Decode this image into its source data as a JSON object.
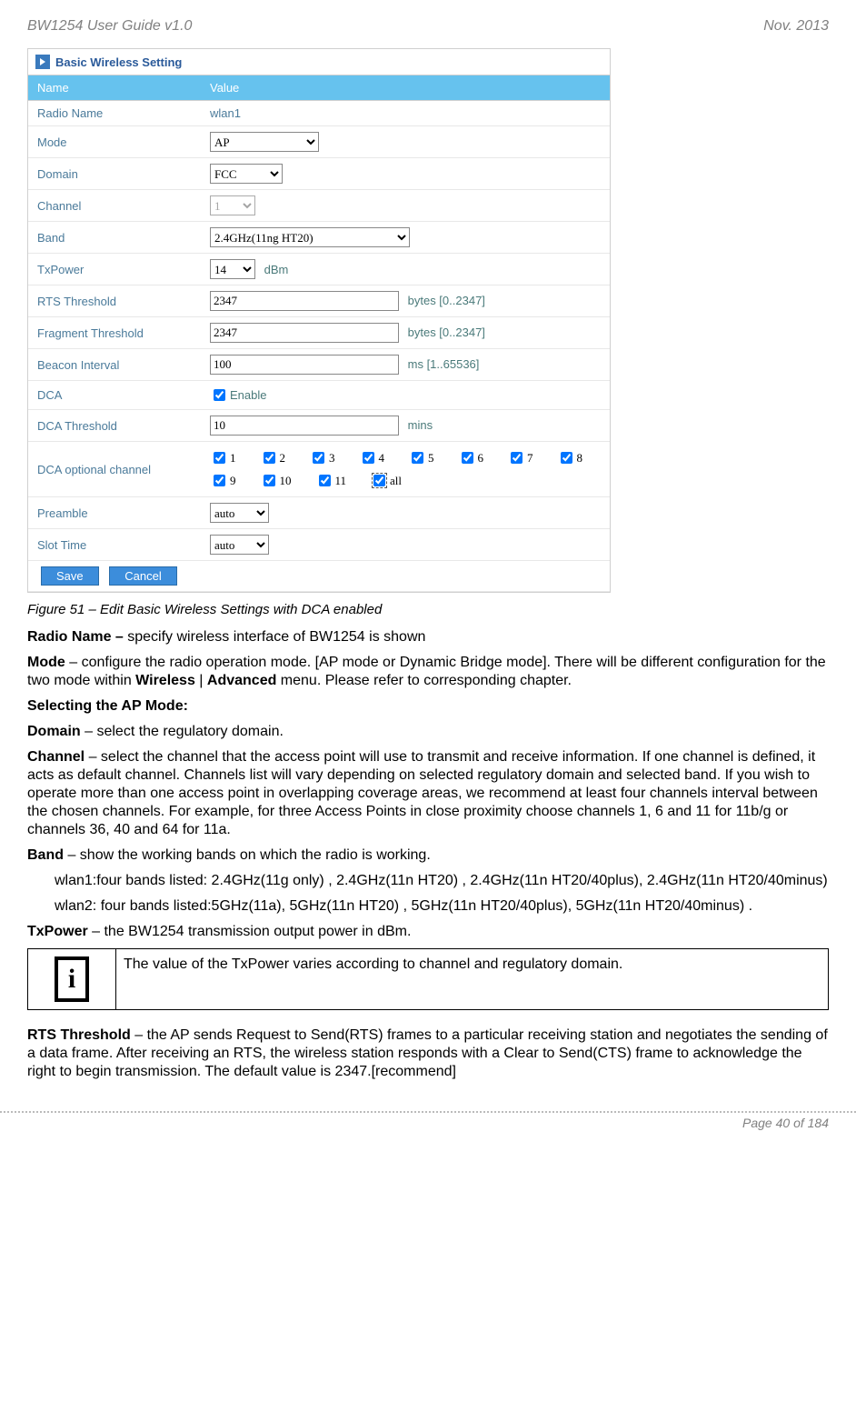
{
  "header": {
    "left": "BW1254 User Guide v1.0",
    "right": "Nov.  2013"
  },
  "panel": {
    "title": "Basic Wireless Setting",
    "columns": {
      "name": "Name",
      "value": "Value"
    },
    "rows": {
      "radioName": {
        "label": "Radio Name",
        "value": "wlan1"
      },
      "mode": {
        "label": "Mode",
        "value": "AP"
      },
      "domain": {
        "label": "Domain",
        "value": "FCC"
      },
      "channel": {
        "label": "Channel",
        "value": "1"
      },
      "band": {
        "label": "Band",
        "value": "2.4GHz(11ng HT20)"
      },
      "txpower": {
        "label": "TxPower",
        "value": "14",
        "unit": "dBm"
      },
      "rts": {
        "label": "RTS Threshold",
        "value": "2347",
        "unit": "bytes [0..2347]"
      },
      "frag": {
        "label": "Fragment Threshold",
        "value": "2347",
        "unit": "bytes [0..2347]"
      },
      "beacon": {
        "label": "Beacon Interval",
        "value": "100",
        "unit": "ms [1..65536]"
      },
      "dca": {
        "label": "DCA",
        "text": "Enable"
      },
      "dcaThresh": {
        "label": "DCA Threshold",
        "value": "10",
        "unit": "mins"
      },
      "dcaOpt": {
        "label": "DCA optional channel",
        "items": [
          "1",
          "2",
          "3",
          "4",
          "5",
          "6",
          "7",
          "8",
          "9",
          "10",
          "11",
          "all"
        ]
      },
      "preamble": {
        "label": "Preamble",
        "value": "auto"
      },
      "slot": {
        "label": "Slot Time",
        "value": "auto"
      }
    },
    "buttons": {
      "save": "Save",
      "cancel": "Cancel"
    }
  },
  "figcap": "Figure 51 – Edit Basic Wireless Settings with DCA enabled",
  "text": {
    "radioName_b": "Radio Name –",
    "radioName_t": " specify wireless interface of BW1254 is shown",
    "mode_b": "Mode",
    "mode_t1": " – configure the radio operation mode. [AP mode or Dynamic Bridge mode]. There will be different configuration for the two mode within ",
    "mode_w": "Wireless",
    "mode_sep": " | ",
    "mode_a": "Advanced",
    "mode_t2": " menu. Please refer to corresponding chapter.",
    "selAP": "Selecting the AP Mode:",
    "domain_b": "Domain",
    "domain_t": " – select the regulatory domain.",
    "channel_b": "Channel",
    "channel_t": " – select the channel that the access point will use to transmit and receive information. If one channel is defined, it acts as default channel. Channels list will vary depending on selected regulatory domain and selected band. If you wish to operate more than one access point in overlapping coverage areas, we recommend at least four channels interval between the chosen channels. For example, for three Access Points in close proximity choose channels 1, 6 and 11 for 11b/g or channels 36, 40 and 64 for 11a.",
    "band_b": "Band",
    "band_t": " – show the working bands on which the radio is working.",
    "wlan1": "wlan1:four bands listed: 2.4GHz(11g only) , 2.4GHz(11n HT20) , 2.4GHz(11n HT20/40plus), 2.4GHz(11n HT20/40minus)",
    "wlan2": "wlan2: four bands listed:5GHz(11a), 5GHz(11n HT20) , 5GHz(11n HT20/40plus), 5GHz(11n HT20/40minus) .",
    "txp_b": "TxPower",
    "txp_t": "  – the BW1254 transmission output power in dBm.",
    "infoText": "The value of the TxPower varies according to channel and regulatory domain.",
    "rts_b": "RTS Threshold",
    "rts_t": " – the AP sends Request to Send(RTS) frames to a particular receiving station and negotiates the sending of a data frame. After receiving an RTS, the wireless station responds with a Clear to Send(CTS) frame to acknowledge the right to begin transmission. The default value is 2347.[recommend]"
  },
  "footer": "Page 40 of 184"
}
